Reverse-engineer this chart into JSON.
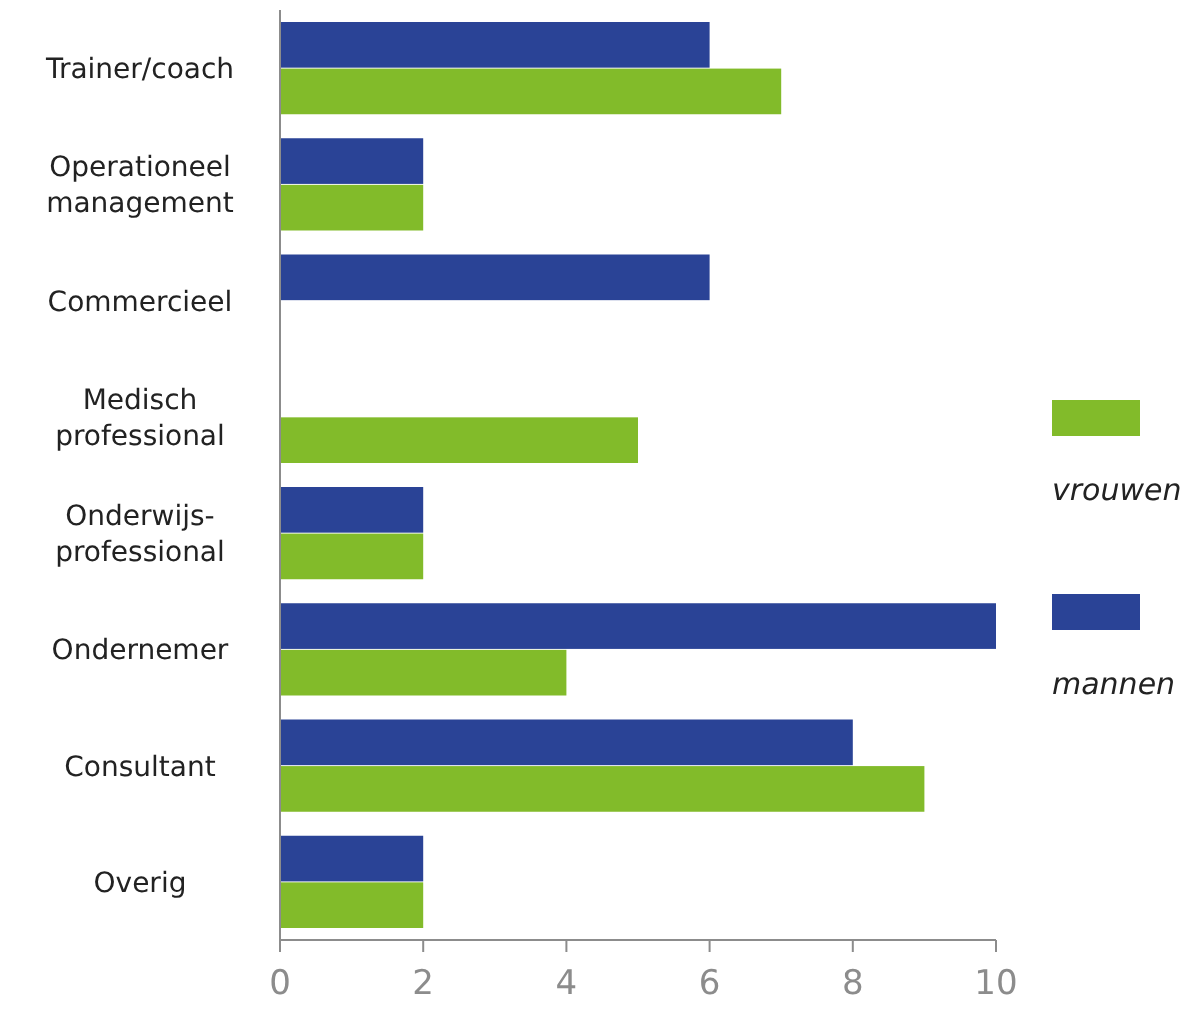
{
  "chart_data": {
    "type": "bar",
    "orientation": "horizontal",
    "categories": [
      "Trainer/coach",
      "Operationeel management",
      "Commercieel",
      "Medisch professional",
      "Onderwijs-professional",
      "Ondernemer",
      "Consultant",
      "Overig"
    ],
    "series": [
      {
        "name": "mannen",
        "color": "#2a4396",
        "values": [
          6,
          2,
          6,
          0,
          2,
          10,
          8,
          2
        ]
      },
      {
        "name": "vrouwen",
        "color": "#82bb2a",
        "values": [
          7,
          2,
          0,
          5,
          2,
          4,
          9,
          2
        ]
      }
    ],
    "xlim": [
      0,
      10
    ],
    "xticks": [
      0,
      2,
      4,
      6,
      8,
      10
    ],
    "grid": false,
    "legend": "right"
  }
}
